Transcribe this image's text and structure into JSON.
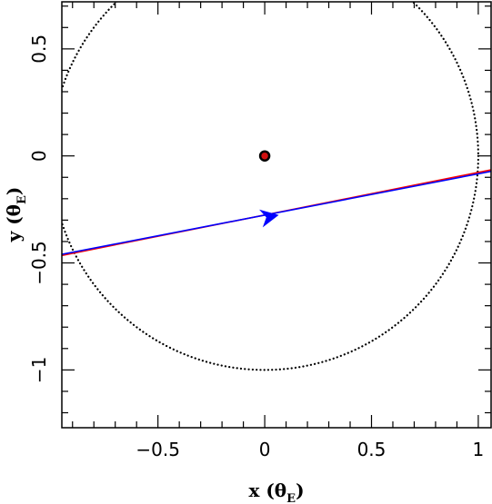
{
  "chart_data": {
    "type": "line",
    "title": "",
    "xlabel": {
      "main": "x (θ",
      "sub": "E",
      "close": ")"
    },
    "ylabel": {
      "main": "y (θ",
      "sub": "E",
      "close": ")"
    },
    "xlim": [
      -0.95,
      1.06
    ],
    "ylim": [
      -1.27,
      0.72
    ],
    "x_ticks": [
      -0.5,
      0,
      0.5,
      1
    ],
    "x_tick_labels": [
      "−0.5",
      "0",
      "0.5",
      "1"
    ],
    "y_ticks": [
      0.5,
      0,
      -0.5,
      -1
    ],
    "y_tick_labels": [
      "0.5",
      "0",
      "−0.5",
      "−1"
    ],
    "grid": false,
    "einstein_ring": {
      "center": [
        0,
        0
      ],
      "radius": 1.0,
      "style": "dotted",
      "color": "#000000"
    },
    "lens": {
      "x": 0,
      "y": 0,
      "color": "#d01010",
      "edge_color": "#000000"
    },
    "series": [
      {
        "x": [
          -0.95,
          1.06
        ],
        "y": [
          -0.465,
          -0.065
        ],
        "color": "#ff0000"
      },
      {
        "x": [
          -0.95,
          1.06
        ],
        "y": [
          -0.46,
          -0.072
        ],
        "color": "#0000ff"
      }
    ],
    "direction_arrow": {
      "x": 0.02,
      "y": -0.285,
      "color": "#0000ff"
    }
  }
}
